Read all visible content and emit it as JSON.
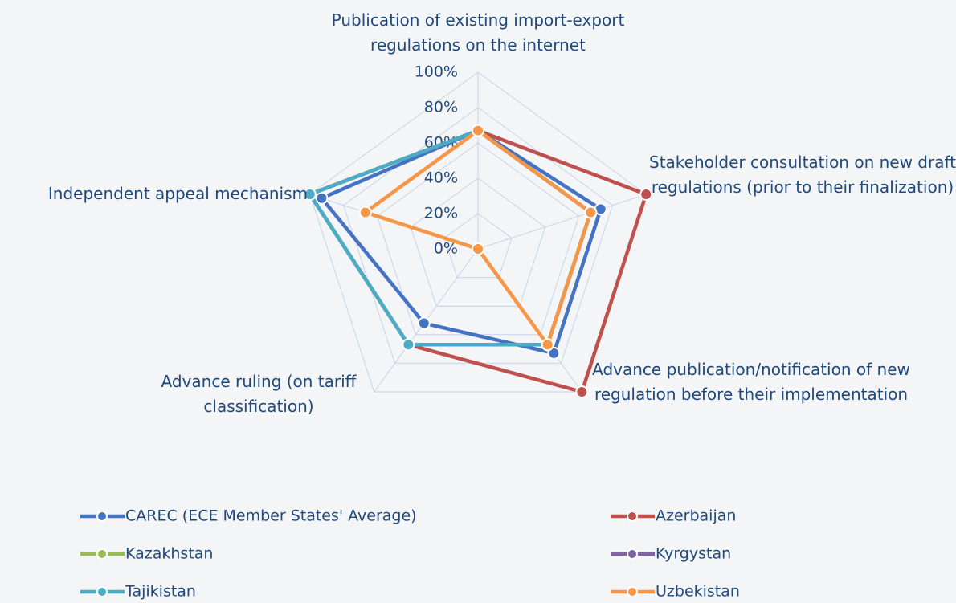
{
  "chart_data": {
    "type": "radar",
    "categories": [
      "Publication of existing import-export regulations on the internet",
      "Stakeholder consultation on new draft regulations (prior to their finalization)",
      "Advance publication/notification of new regulation before their implementation",
      "Advance ruling (on tariff classification)",
      "Independent appeal mechanism"
    ],
    "rlim": [
      0,
      100
    ],
    "rticks": [
      {
        "value": 0,
        "label": "0%"
      },
      {
        "value": 20,
        "label": "20%"
      },
      {
        "value": 40,
        "label": "40%"
      },
      {
        "value": 60,
        "label": "60%"
      },
      {
        "value": 80,
        "label": "80%"
      },
      {
        "value": 100,
        "label": "100%"
      }
    ],
    "grid": true,
    "legend": "bottom",
    "series": [
      {
        "name": "CAREC (ECE Member States' Average)",
        "color": "#4472c4",
        "values": [
          67,
          73,
          73,
          52,
          93
        ]
      },
      {
        "name": "Azerbaijan",
        "color": "#c0504d",
        "values": [
          67,
          100,
          100,
          67,
          100
        ]
      },
      {
        "name": "Kazakhstan",
        "color": "#9bbb59",
        "values": [
          67,
          67,
          67,
          67,
          100
        ]
      },
      {
        "name": "Kyrgystan",
        "color": "#8064a2",
        "values": [
          67,
          67,
          67,
          67,
          100
        ]
      },
      {
        "name": "Tajikistan",
        "color": "#4bacc6",
        "values": [
          67,
          67,
          67,
          67,
          100
        ]
      },
      {
        "name": "Uzbekistan",
        "color": "#f79646",
        "values": [
          67,
          67,
          67,
          0,
          67
        ]
      }
    ]
  }
}
